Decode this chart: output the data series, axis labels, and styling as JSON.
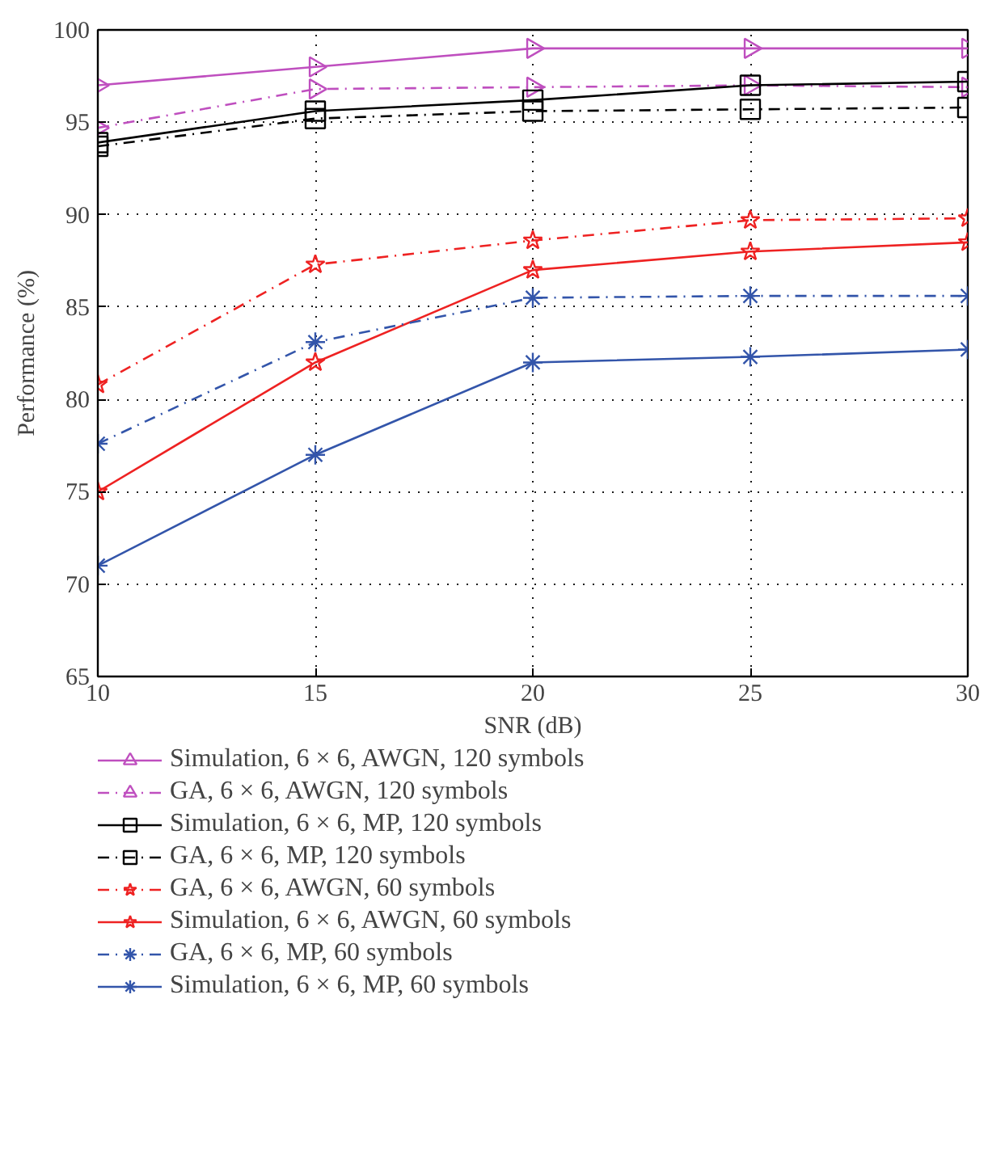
{
  "chart_data": {
    "type": "line",
    "xlabel": "SNR (dB)",
    "ylabel": "Performance (%)",
    "x": [
      10,
      15,
      20,
      25,
      30
    ],
    "xlim": [
      10,
      30
    ],
    "xticks": [
      10,
      15,
      20,
      25,
      30
    ],
    "ylim": [
      65,
      100
    ],
    "yticks": [
      65,
      70,
      75,
      80,
      85,
      90,
      95,
      100
    ],
    "grid": true,
    "legend": "bottom",
    "series": [
      {
        "name": "Simulation, 6 × 6, AWGN, 120 symbols",
        "color": "#bf4fbf",
        "marker": "triangle",
        "line_style": "solid",
        "values": [
          97,
          98,
          99,
          99,
          99
        ]
      },
      {
        "name": "GA, 6 × 6, AWGN, 120 symbols",
        "color": "#bf4fbf",
        "marker": "triangle",
        "line_style": "dashdot",
        "values": [
          94.7,
          96.8,
          96.9,
          97,
          96.9
        ]
      },
      {
        "name": "Simulation, 6 × 6, MP, 120 symbols",
        "color": "#000000",
        "marker": "square",
        "line_style": "solid",
        "values": [
          93.9,
          95.6,
          96.2,
          97,
          97.2
        ]
      },
      {
        "name": "GA, 6 × 6, MP, 120 symbols",
        "color": "#000000",
        "marker": "square",
        "line_style": "dashdot",
        "values": [
          93.7,
          95.2,
          95.6,
          95.7,
          95.8
        ]
      },
      {
        "name": "GA, 6 × 6, AWGN, 60 symbols",
        "color": "#ee2222",
        "marker": "star",
        "line_style": "dashdot",
        "values": [
          80.8,
          87.3,
          88.6,
          89.7,
          89.8
        ]
      },
      {
        "name": "Simulation, 6 × 6, AWGN, 60 symbols",
        "color": "#ee2222",
        "marker": "star",
        "line_style": "solid",
        "values": [
          75,
          82,
          87,
          88,
          88.5
        ]
      },
      {
        "name": "GA, 6 × 6, MP, 60 symbols",
        "color": "#3355aa",
        "marker": "cross",
        "line_style": "dashdot",
        "values": [
          77.6,
          83.1,
          85.5,
          85.6,
          85.6
        ]
      },
      {
        "name": "Simulation, 6 × 6, MP, 60 symbols",
        "color": "#3355aa",
        "marker": "cross",
        "line_style": "solid",
        "values": [
          71,
          77,
          82,
          82.3,
          82.7
        ]
      }
    ]
  }
}
